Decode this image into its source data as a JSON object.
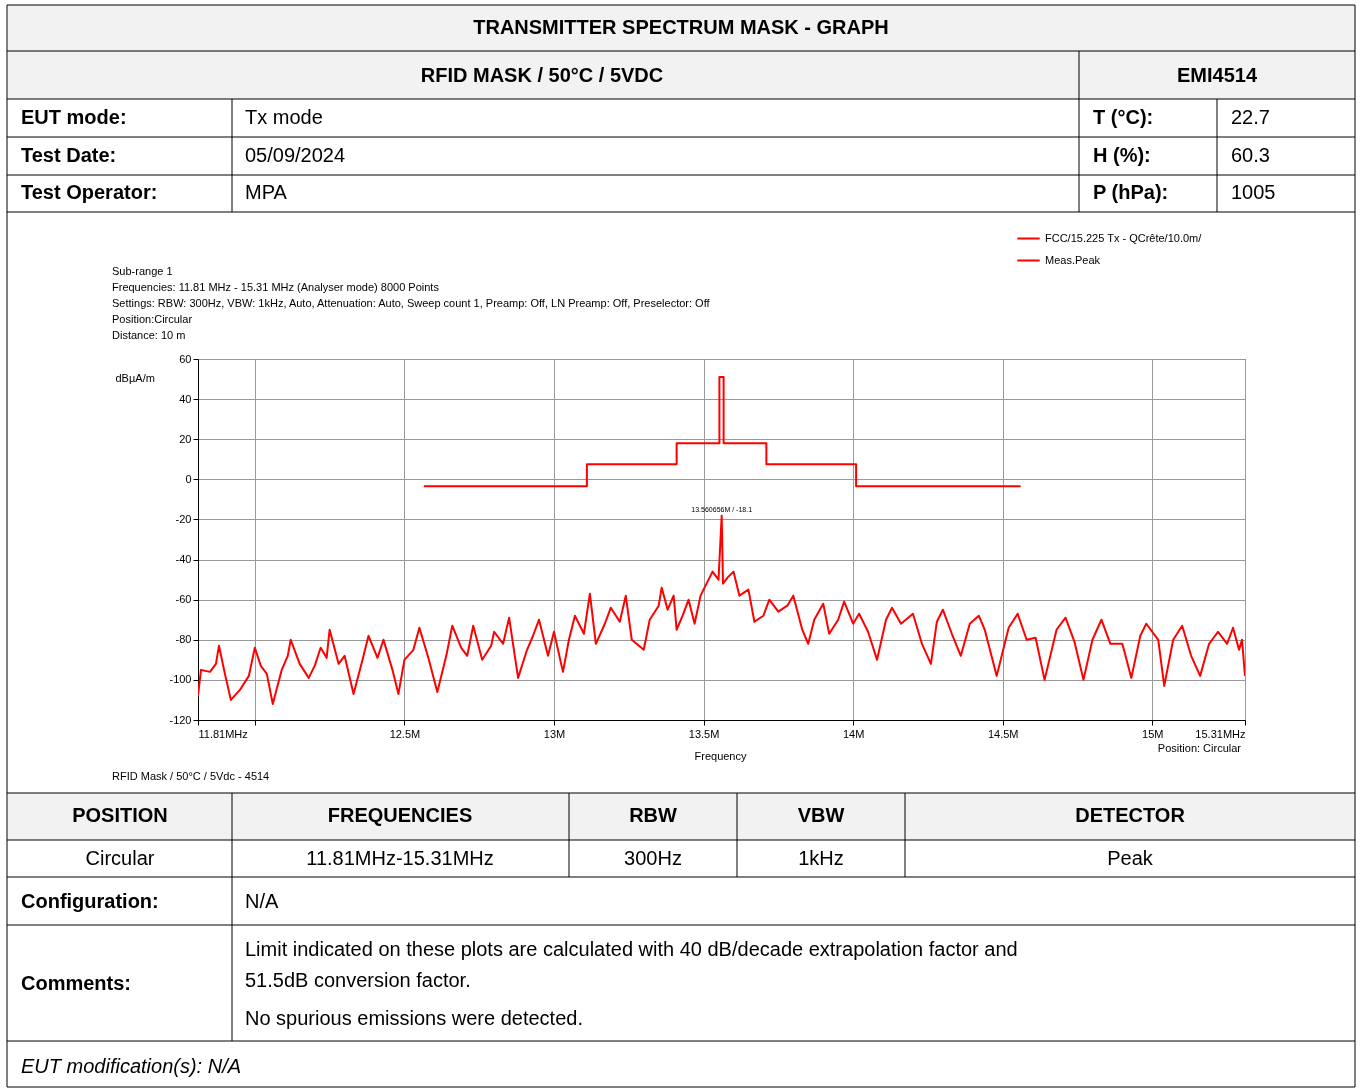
{
  "chart_data": {
    "type": "line",
    "xlabel": "Frequency",
    "ylabel": "dBµA/m",
    "xlim": [
      11.81,
      15.31
    ],
    "ylim": [
      -120,
      60
    ],
    "xticks": [
      {
        "value": 11.81,
        "label": "11.81MHz"
      },
      {
        "value": 12.0,
        "label": null
      },
      {
        "value": 12.5,
        "label": "12.5M"
      },
      {
        "value": 13.0,
        "label": "13M"
      },
      {
        "value": 13.5,
        "label": "13.5M"
      },
      {
        "value": 14.0,
        "label": "14M"
      },
      {
        "value": 14.5,
        "label": "14.5M"
      },
      {
        "value": 15.0,
        "label": "15M"
      },
      {
        "value": 15.31,
        "label": "15.31MHz"
      }
    ],
    "yticks": [
      -120,
      -100,
      -80,
      -60,
      -40,
      -20,
      0,
      20,
      40,
      60
    ],
    "grid": true,
    "legend": "top right",
    "series": [
      {
        "name": "FCC/15.225 Tx - QCrête/10.0m/",
        "color": "#ff0000",
        "x": [
          12.565,
          13.11,
          13.11,
          13.41,
          13.41,
          13.553,
          13.553,
          13.567,
          13.567,
          13.71,
          13.71,
          14.01,
          14.01,
          14.56
        ],
        "values": [
          -3.5,
          -3.5,
          7.5,
          7.5,
          18,
          18,
          51,
          51,
          18,
          18,
          7.5,
          7.5,
          -3.5,
          -3.5
        ]
      },
      {
        "name": "Meas.Peak",
        "color": "#ff0000",
        "x": [
          11.81,
          11.82,
          11.85,
          11.87,
          11.88,
          11.9,
          11.92,
          11.95,
          11.98,
          12.0,
          12.02,
          12.04,
          12.06,
          12.09,
          12.11,
          12.12,
          12.15,
          12.18,
          12.2,
          12.22,
          12.24,
          12.25,
          12.28,
          12.3,
          12.33,
          12.36,
          12.38,
          12.41,
          12.43,
          12.46,
          12.48,
          12.5,
          12.53,
          12.55,
          12.58,
          12.61,
          12.64,
          12.66,
          12.69,
          12.71,
          12.73,
          12.76,
          12.79,
          12.8,
          12.83,
          12.85,
          12.88,
          12.91,
          12.93,
          12.95,
          12.98,
          13.0,
          13.03,
          13.05,
          13.07,
          13.1,
          13.12,
          13.14,
          13.17,
          13.19,
          13.22,
          13.24,
          13.26,
          13.3,
          13.32,
          13.35,
          13.36,
          13.38,
          13.4,
          13.41,
          13.43,
          13.45,
          13.47,
          13.49,
          13.51,
          13.53,
          13.55,
          13.560656,
          13.565,
          13.58,
          13.6,
          13.62,
          13.65,
          13.67,
          13.7,
          13.72,
          13.75,
          13.78,
          13.8,
          13.83,
          13.85,
          13.87,
          13.9,
          13.92,
          13.95,
          13.97,
          14.0,
          14.02,
          14.05,
          14.08,
          14.11,
          14.13,
          14.16,
          14.2,
          14.23,
          14.26,
          14.28,
          14.3,
          14.33,
          14.36,
          14.39,
          14.42,
          14.44,
          14.48,
          14.52,
          14.55,
          14.58,
          14.61,
          14.64,
          14.68,
          14.71,
          14.74,
          14.77,
          14.8,
          14.83,
          14.86,
          14.9,
          14.93,
          14.96,
          14.98,
          15.02,
          15.04,
          15.07,
          15.1,
          15.13,
          15.16,
          15.19,
          15.22,
          15.25,
          15.27,
          15.29,
          15.3,
          15.31
        ],
        "values": [
          -108,
          -95,
          -96,
          -92,
          -83,
          -97,
          -110,
          -105,
          -98,
          -84,
          -93,
          -97,
          -112,
          -95,
          -88,
          -80,
          -92,
          -99,
          -93,
          -84,
          -89,
          -75,
          -92,
          -88,
          -107,
          -90,
          -78,
          -89,
          -80,
          -95,
          -107,
          -90,
          -85,
          -74,
          -89,
          -106,
          -88,
          -73,
          -84,
          -88,
          -73,
          -90,
          -83,
          -76,
          -82,
          -69,
          -99,
          -85,
          -78,
          -70,
          -88,
          -76,
          -96,
          -80,
          -68,
          -77,
          -57,
          -82,
          -72,
          -64,
          -71,
          -58,
          -80,
          -85,
          -70,
          -63,
          -54,
          -65,
          -58,
          -75,
          -68,
          -60,
          -72,
          -58,
          -52,
          -46,
          -50,
          -18.1,
          -52,
          -49,
          -46,
          -58,
          -55,
          -71,
          -68,
          -60,
          -66,
          -63,
          -58,
          -75,
          -82,
          -70,
          -62,
          -77,
          -70,
          -61,
          -72,
          -67,
          -76,
          -90,
          -70,
          -64,
          -72,
          -67,
          -82,
          -92,
          -71,
          -65,
          -77,
          -88,
          -72,
          -68,
          -75,
          -98,
          -74,
          -67,
          -80,
          -79,
          -100,
          -75,
          -69,
          -81,
          -100,
          -80,
          -70,
          -82,
          -82,
          -99,
          -78,
          -72,
          -80,
          -103,
          -80,
          -73,
          -88,
          -98,
          -82,
          -76,
          -82,
          -74,
          -85,
          -80,
          -98
        ]
      }
    ],
    "annotations": [
      "TRANSMITTER SPECTRUM MASK - GRAPH",
      "RFID MASK / 50°C / 5VDC",
      "EMI4514",
      "EUT mode:",
      "Tx mode",
      "T (°C):",
      "22.7",
      "Test Date:",
      "05/09/2024",
      "H (%):",
      "60.3",
      "Test Operator:",
      "MPA",
      "P (hPa):",
      "1005",
      "Sub-range 1",
      "Frequencies: 11.81 MHz - 15.31 MHz (Analyser mode) 8000 Points",
      "Settings: RBW: 300Hz, VBW: 1kHz, Auto, Attenuation: Auto, Sweep count 1, Preamp: Off, LN Preamp: Off, Preselector: Off",
      "Position:Circular",
      "Distance: 10 m",
      "RFID Mask / 50°C / 5Vdc  -  4514",
      "Position: Circular",
      "POSITION",
      "FREQUENCIES",
      "RBW",
      "VBW",
      "DETECTOR",
      "Circular",
      "11.81MHz-15.31MHz",
      "300Hz",
      "1kHz",
      "Peak",
      "Configuration:",
      "N/A",
      "Comments:",
      "Limit indicated on these plots are calculated with 40 dB/decade extrapolation factor and",
      "51.5dB conversion factor.",
      "No spurious emissions were detected.",
      "EUT modification(s): N/A",
      {
        "text": "13.560656M / -18.1",
        "x": 13.560656,
        "y": -18.1
      }
    ]
  }
}
